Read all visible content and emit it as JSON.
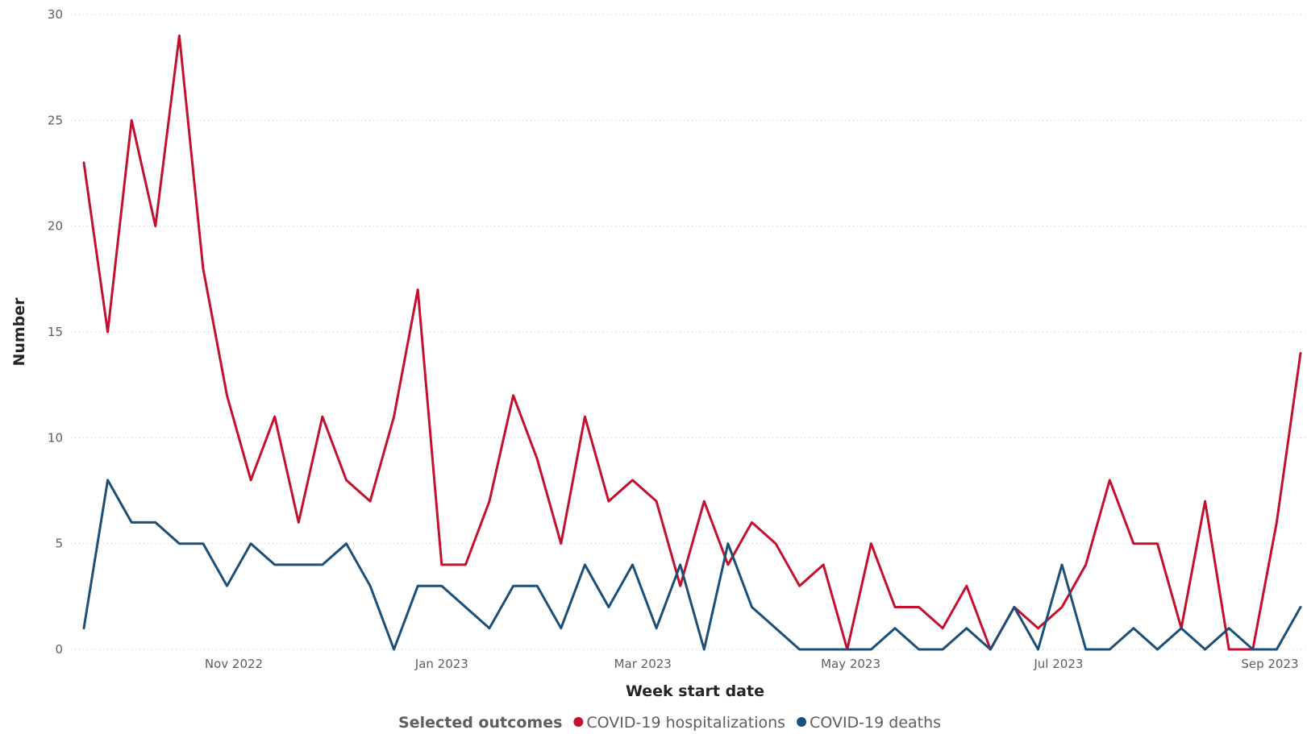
{
  "chart_data": {
    "type": "line",
    "xlabel": "Week start date",
    "ylabel": "Number",
    "ylim": [
      0,
      30
    ],
    "yticks": [
      0,
      5,
      10,
      15,
      20,
      25,
      30
    ],
    "xticks": [
      {
        "date": "2022-11-01",
        "label": "Nov 2022"
      },
      {
        "date": "2023-01-01",
        "label": "Jan 2023"
      },
      {
        "date": "2023-03-01",
        "label": "Mar 2023"
      },
      {
        "date": "2023-05-01",
        "label": "May 2023"
      },
      {
        "date": "2023-07-01",
        "label": "Jul 2023"
      },
      {
        "date": "2023-09-01",
        "label": "Sep 2023"
      }
    ],
    "grid": "horizontal dotted",
    "legend": {
      "title": "Selected outcomes",
      "position": "bottom-center"
    },
    "x": [
      "2022-09-18",
      "2022-09-25",
      "2022-10-02",
      "2022-10-09",
      "2022-10-16",
      "2022-10-23",
      "2022-10-30",
      "2022-11-06",
      "2022-11-13",
      "2022-11-20",
      "2022-11-27",
      "2022-12-04",
      "2022-12-11",
      "2022-12-18",
      "2022-12-25",
      "2023-01-01",
      "2023-01-08",
      "2023-01-15",
      "2023-01-22",
      "2023-01-29",
      "2023-02-05",
      "2023-02-12",
      "2023-02-19",
      "2023-02-26",
      "2023-03-05",
      "2023-03-12",
      "2023-03-19",
      "2023-03-26",
      "2023-04-02",
      "2023-04-09",
      "2023-04-16",
      "2023-04-23",
      "2023-04-30",
      "2023-05-07",
      "2023-05-14",
      "2023-05-21",
      "2023-05-28",
      "2023-06-04",
      "2023-06-11",
      "2023-06-18",
      "2023-06-25",
      "2023-07-02",
      "2023-07-09",
      "2023-07-16",
      "2023-07-23",
      "2023-07-30",
      "2023-08-06",
      "2023-08-13",
      "2023-08-20",
      "2023-08-27",
      "2023-09-03",
      "2023-09-10"
    ],
    "series": [
      {
        "name": "COVID-19 hospitalizations",
        "color": "#c3102f",
        "values": [
          23,
          15,
          25,
          20,
          29,
          18,
          12,
          8,
          11,
          6,
          11,
          8,
          7,
          11,
          17,
          4,
          4,
          7,
          12,
          9,
          5,
          11,
          7,
          8,
          7,
          3,
          7,
          4,
          6,
          5,
          3,
          4,
          0,
          5,
          2,
          2,
          1,
          3,
          0,
          2,
          1,
          2,
          4,
          8,
          5,
          5,
          1,
          7,
          0,
          0,
          6,
          14
        ]
      },
      {
        "name": "COVID-19 deaths",
        "color": "#1b4f77",
        "values": [
          1,
          8,
          6,
          6,
          5,
          5,
          3,
          5,
          4,
          4,
          4,
          5,
          3,
          0,
          3,
          3,
          2,
          1,
          3,
          3,
          1,
          4,
          2,
          4,
          1,
          4,
          0,
          5,
          2,
          1,
          0,
          0,
          0,
          0,
          1,
          0,
          0,
          1,
          0,
          2,
          0,
          4,
          0,
          0,
          1,
          0,
          1,
          0,
          1,
          0,
          0,
          2
        ]
      }
    ]
  }
}
